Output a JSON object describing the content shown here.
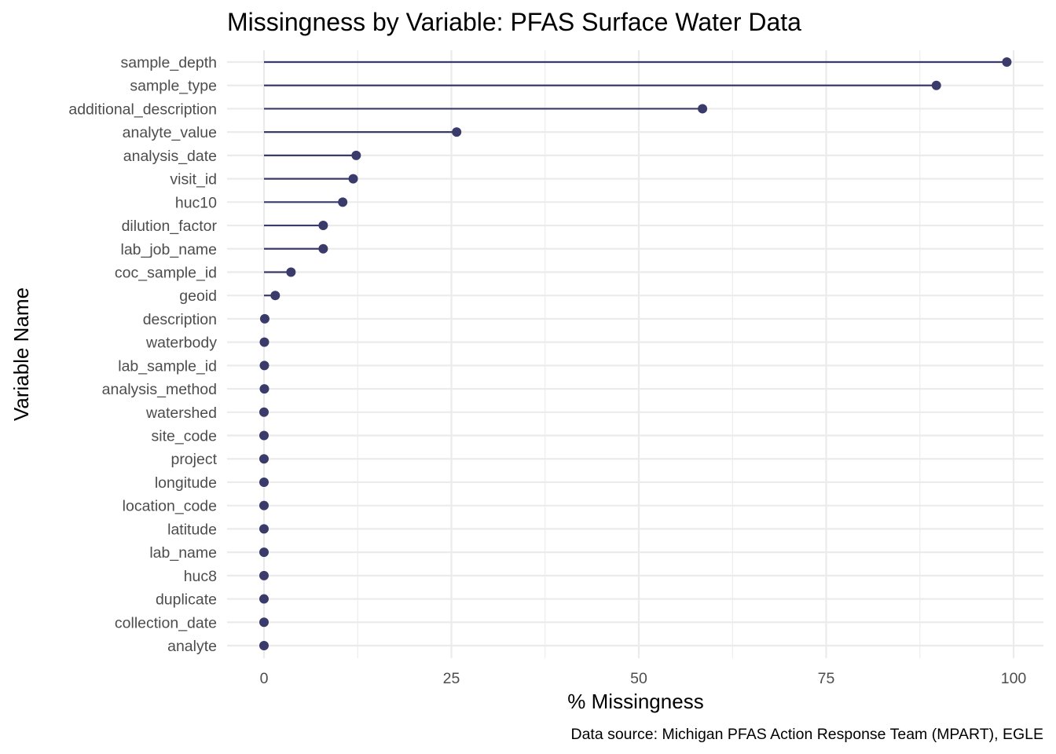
{
  "chart_data": {
    "type": "lollipop",
    "title": "Missingness by Variable: PFAS Surface Water Data",
    "xlabel": "% Missingness",
    "ylabel": "Variable Name",
    "caption": "Data source: Michigan PFAS Action Response Team (MPART), EGLE",
    "xlim": [
      -5,
      103
    ],
    "xticks": [
      0,
      25,
      50,
      75,
      100
    ],
    "grid": true,
    "point_color": "#3b3b6b",
    "line_color": "#3b3b6b",
    "categories": [
      "sample_depth",
      "sample_type",
      "additional_description",
      "analyte_value",
      "analysis_date",
      "visit_id",
      "huc10",
      "dilution_factor",
      "lab_job_name",
      "coc_sample_id",
      "geoid",
      "description",
      "waterbody",
      "lab_sample_id",
      "analysis_method",
      "watershed",
      "site_code",
      "project",
      "longitude",
      "location_code",
      "latitude",
      "lab_name",
      "huc8",
      "duplicate",
      "collection_date",
      "analyte"
    ],
    "values": [
      99.1,
      89.7,
      58.5,
      25.7,
      12.3,
      11.9,
      10.5,
      7.9,
      7.9,
      3.6,
      1.5,
      0.1,
      0.05,
      0.05,
      0.05,
      0.0,
      0.0,
      0.0,
      0.0,
      0.0,
      0.0,
      0.0,
      0.0,
      0.0,
      0.0,
      0.0
    ]
  }
}
